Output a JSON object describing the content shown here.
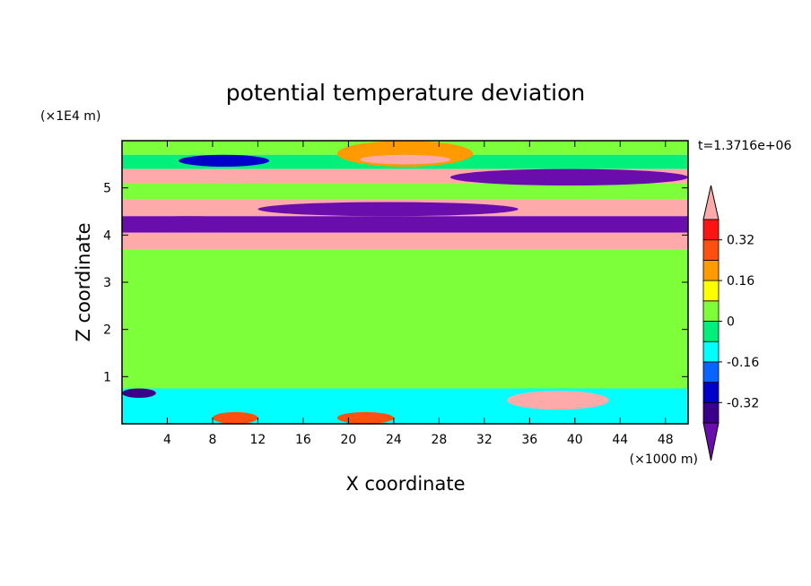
{
  "chart_data": {
    "type": "heatmap",
    "title": "potential temperature deviation",
    "xlabel": "X coordinate",
    "ylabel": "Z coordinate",
    "x_unit": "(×1000 m)",
    "y_unit": "(×1E4 m)",
    "time_label": "t=1.3716e+06",
    "xlim": [
      0,
      50
    ],
    "ylim": [
      0,
      6
    ],
    "xticks": [
      "4",
      "8",
      "12",
      "16",
      "20",
      "24",
      "28",
      "32",
      "36",
      "40",
      "44",
      "48"
    ],
    "xtick_values": [
      4,
      8,
      12,
      16,
      20,
      24,
      28,
      32,
      36,
      40,
      44,
      48
    ],
    "yticks": [
      "1",
      "2",
      "3",
      "4",
      "5"
    ],
    "ytick_values": [
      1,
      2,
      3,
      4,
      5
    ],
    "colorbar": {
      "levels": [
        -0.4,
        -0.32,
        -0.24,
        -0.16,
        -0.08,
        0,
        0.08,
        0.16,
        0.24,
        0.32,
        0.4
      ],
      "labels": [
        "0.32",
        "0.16",
        "0",
        "-0.16",
        "-0.32"
      ],
      "label_values": [
        0.32,
        0.16,
        0,
        -0.16,
        -0.32
      ],
      "colors": [
        "#6a0dad",
        "#3a008a",
        "#0000c8",
        "#0a64ff",
        "#00ffff",
        "#00f07a",
        "#7dff3a",
        "#ffff00",
        "#ff9a00",
        "#ff5010",
        "#ff1414",
        "#ffaaaa"
      ]
    },
    "bands": [
      {
        "y": [
          5.7,
          6.0
        ],
        "value": 0.0
      },
      {
        "y": [
          5.4,
          5.7
        ],
        "value": -0.05
      },
      {
        "y": [
          5.1,
          5.4
        ],
        "value": 0.4
      },
      {
        "y": [
          4.75,
          5.1
        ],
        "value": 0.0
      },
      {
        "y": [
          4.4,
          4.75
        ],
        "value": 0.45
      },
      {
        "y": [
          4.05,
          4.4
        ],
        "value": -0.45
      },
      {
        "y": [
          3.7,
          4.05
        ],
        "value": 0.4
      },
      {
        "y": [
          0.75,
          3.7
        ],
        "value": 0.02
      },
      {
        "y": [
          0.0,
          0.75
        ],
        "value": -0.12
      }
    ],
    "features": [
      {
        "x": [
          19,
          31
        ],
        "y": [
          5.45,
          6.0
        ],
        "value": 0.2
      },
      {
        "x": [
          21,
          29
        ],
        "y": [
          5.5,
          5.7
        ],
        "value": 0.45
      },
      {
        "x": [
          5,
          13
        ],
        "y": [
          5.45,
          5.7
        ],
        "value": -0.3
      },
      {
        "x": [
          29,
          50
        ],
        "y": [
          5.05,
          5.4
        ],
        "value": -0.45
      },
      {
        "x": [
          0,
          20
        ],
        "y": [
          5.1,
          5.35
        ],
        "value": 0.45
      },
      {
        "x": [
          12,
          35
        ],
        "y": [
          4.4,
          4.7
        ],
        "value": -0.45
      },
      {
        "x": [
          0,
          12
        ],
        "y": [
          4.1,
          4.4
        ],
        "value": -0.45
      },
      {
        "x": [
          36,
          50
        ],
        "y": [
          4.55,
          4.75
        ],
        "value": 0.4
      },
      {
        "x": [
          34,
          43
        ],
        "y": [
          0.3,
          0.7
        ],
        "value": 0.45
      },
      {
        "x": [
          0,
          3
        ],
        "y": [
          0.55,
          0.75
        ],
        "value": -0.4
      },
      {
        "x": [
          8,
          12
        ],
        "y": [
          0.0,
          0.25
        ],
        "value": 0.3
      },
      {
        "x": [
          19,
          24
        ],
        "y": [
          0.0,
          0.25
        ],
        "value": 0.3
      }
    ]
  }
}
